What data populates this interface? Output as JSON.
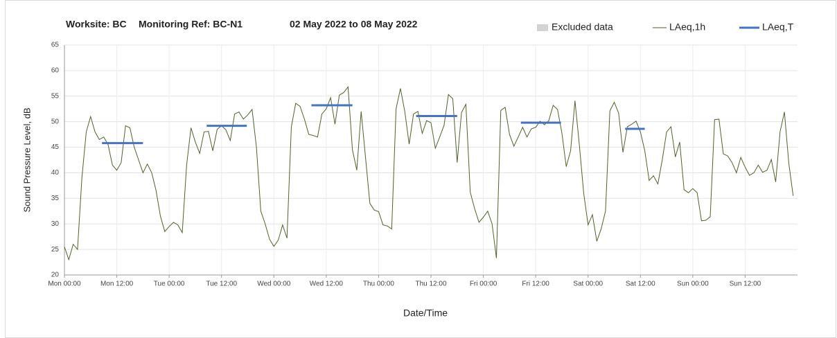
{
  "chart_data": {
    "type": "line",
    "title": "Worksite: BC",
    "subtitle": "Monitoring Ref: BC-N1",
    "period": "02 May 2022 to 08 May 2022",
    "xlabel": "Date/Time",
    "ylabel": "Sound Pressure Level, dB",
    "xlim": [
      0,
      168
    ],
    "xticks": [
      {
        "value": 0,
        "label": "Mon 00:00"
      },
      {
        "value": 12,
        "label": "Mon 12:00"
      },
      {
        "value": 24,
        "label": "Tue 00:00"
      },
      {
        "value": 36,
        "label": "Tue 12:00"
      },
      {
        "value": 48,
        "label": "Wed 00:00"
      },
      {
        "value": 60,
        "label": "Wed 12:00"
      },
      {
        "value": 72,
        "label": "Thu 00:00"
      },
      {
        "value": 84,
        "label": "Thu 12:00"
      },
      {
        "value": 96,
        "label": "Fri 00:00"
      },
      {
        "value": 108,
        "label": "Fri 12:00"
      },
      {
        "value": 120,
        "label": "Sat 00:00"
      },
      {
        "value": 132,
        "label": "Sat 12:00"
      },
      {
        "value": 144,
        "label": "Sun 00:00"
      },
      {
        "value": 156,
        "label": "Sun 12:00"
      }
    ],
    "ylim": [
      20,
      65
    ],
    "yticks": [
      20,
      25,
      30,
      35,
      40,
      45,
      50,
      55,
      60,
      65
    ],
    "grid": true,
    "excluded": {
      "name": "Excluded data",
      "color": "#d3d3d3"
    },
    "x": [
      0,
      1,
      2,
      3,
      4,
      5,
      6,
      7,
      8,
      9,
      10,
      11,
      12,
      13,
      14,
      15,
      16,
      17,
      18,
      19,
      20,
      21,
      22,
      23,
      24,
      25,
      26,
      27,
      28,
      29,
      30,
      31,
      32,
      33,
      34,
      35,
      36,
      37,
      38,
      39,
      40,
      41,
      42,
      43,
      44,
      45,
      46,
      47,
      48,
      49,
      50,
      51,
      52,
      53,
      54,
      55,
      56,
      57,
      58,
      59,
      60,
      61,
      62,
      63,
      64,
      65,
      66,
      67,
      68,
      69,
      70,
      71,
      72,
      73,
      74,
      75,
      76,
      77,
      78,
      79,
      80,
      81,
      82,
      83,
      84,
      85,
      86,
      87,
      88,
      89,
      90,
      91,
      92,
      93,
      94,
      95,
      96,
      97,
      98,
      99,
      100,
      101,
      102,
      103,
      104,
      105,
      106,
      107,
      108,
      109,
      110,
      111,
      112,
      113,
      114,
      115,
      116,
      117,
      118,
      119,
      120,
      121,
      122,
      123,
      124,
      125,
      126,
      127,
      128,
      129,
      130,
      131,
      132,
      133,
      134,
      135,
      136,
      137,
      138,
      139,
      140,
      141,
      142,
      143,
      144,
      145,
      146,
      147,
      148,
      149,
      150,
      151,
      152,
      153,
      154,
      155,
      156,
      157,
      158,
      159,
      160,
      161,
      162,
      163,
      164,
      165,
      166,
      167
    ],
    "series": [
      {
        "name": "LAeq,1h",
        "color": "#4f6228",
        "values": [
          25.5,
          23,
          26,
          25,
          39,
          48,
          51,
          48,
          46.5,
          47,
          45.5,
          41.5,
          40.5,
          42,
          49.2,
          48.8,
          45,
          42.5,
          40,
          41.7,
          40,
          36.5,
          31.5,
          28.5,
          29.5,
          30.3,
          29.8,
          28.3,
          41.5,
          48.8,
          46,
          43.8,
          48,
          48.1,
          44.3,
          48.5,
          49.2,
          48.4,
          46.3,
          51.5,
          51.9,
          50.5,
          51.3,
          52.4,
          45,
          32.5,
          30,
          27,
          25.6,
          26.8,
          29.8,
          27.2,
          49,
          53.6,
          53,
          50.5,
          47.5,
          47.3,
          47,
          51.5,
          52.5,
          54.7,
          49.5,
          55.2,
          55.7,
          56.8,
          44.5,
          40.5,
          52,
          43,
          34,
          32.7,
          32.4,
          29.8,
          29.6,
          29,
          52.5,
          56.5,
          52,
          45.6,
          51.5,
          52,
          47.7,
          50.2,
          49.8,
          44.8,
          47,
          49.3,
          55.3,
          54.5,
          42,
          51.8,
          53.4,
          36.2,
          33,
          30.3,
          31.3,
          32.5,
          30,
          23.3,
          52.2,
          52.8,
          47.5,
          45.2,
          47,
          48.9,
          47,
          48.6,
          48.9,
          50.1,
          49.4,
          50.2,
          53.2,
          52.4,
          47.8,
          41.2,
          44.3,
          54.1,
          45.5,
          36,
          29.8,
          31.8,
          26.6,
          29,
          32.5,
          52.1,
          53.8,
          51.7,
          44,
          49,
          49.5,
          50.1,
          48,
          44.3,
          38.5,
          39.4,
          37.8,
          42.5,
          48,
          49,
          43.1,
          46,
          36.7,
          36.1,
          36.9,
          36.1,
          30.6,
          30.7,
          31.4,
          50.4,
          50.5,
          43.7,
          43.3,
          42,
          40,
          43,
          41.1,
          39.5,
          40,
          41.5,
          40.1,
          40.5,
          42.6,
          38.2,
          48,
          51.9,
          41.9,
          35.5
        ]
      },
      {
        "name": "LAeq,T",
        "color": "#4472c4",
        "segments": [
          {
            "x": [
              8.6,
              18
            ],
            "value": 45.8
          },
          {
            "x": [
              32.6,
              41.8
            ],
            "value": 49.2
          },
          {
            "x": [
              56.6,
              66
            ],
            "value": 53.2
          },
          {
            "x": [
              80.6,
              90
            ],
            "value": 51.1
          },
          {
            "x": [
              104.6,
              113.8
            ],
            "value": 49.8
          },
          {
            "x": [
              128.5,
              133
            ],
            "value": 48.6
          }
        ]
      }
    ]
  }
}
